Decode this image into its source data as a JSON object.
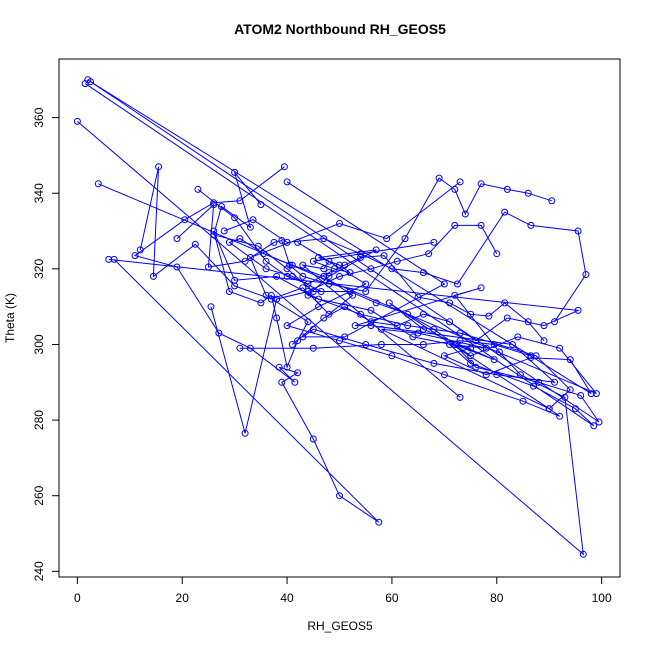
{
  "chart_data": {
    "type": "line",
    "title": "ATOM2 Northbound RH_GEOS5",
    "xlabel": "RH_GEOS5",
    "ylabel": "Theta (K)",
    "xlim": [
      -3.5,
      103.5
    ],
    "ylim": [
      238.5,
      375.5
    ],
    "x_ticks": [
      0,
      20,
      40,
      60,
      80,
      100
    ],
    "y_ticks": [
      240,
      260,
      280,
      300,
      320,
      340,
      360
    ],
    "grid": false,
    "legend": "none",
    "marker": "open-circle",
    "color": "#0000ff",
    "series": [
      {
        "x": [
          0,
          96.5,
          93,
          84.5,
          80.5,
          72,
          77,
          53,
          56,
          83,
          91,
          80,
          68,
          55,
          45,
          43,
          51,
          70,
          40
        ],
        "y": [
          359,
          244.5,
          286,
          292,
          298,
          313,
          315,
          305,
          305,
          300,
          290,
          292,
          295,
          300,
          304,
          302,
          302,
          316,
          343
        ]
      },
      {
        "x": [
          1.5,
          98.5,
          95,
          87,
          75,
          71,
          78,
          65,
          58,
          90,
          92,
          85,
          70,
          60,
          50,
          40,
          46,
          55,
          42,
          48,
          47,
          43,
          73
        ],
        "y": [
          369,
          278.5,
          283,
          289,
          295,
          300,
          299,
          303,
          304,
          283,
          281,
          285,
          292,
          297,
          301,
          305,
          310,
          316,
          327,
          322,
          320,
          321,
          286
        ]
      },
      {
        "x": [
          2,
          99.5,
          96,
          88,
          76,
          72,
          79.5,
          66,
          59.5,
          90,
          94,
          87.5,
          73,
          63,
          54,
          44,
          48,
          57,
          46,
          50,
          52,
          49,
          45,
          68
        ],
        "y": [
          370,
          279.5,
          286.5,
          290,
          294,
          300,
          296,
          304,
          311,
          283,
          288,
          297,
          303,
          305,
          308,
          313,
          318,
          325,
          323,
          321,
          319,
          320,
          322,
          327
        ]
      },
      {
        "x": [
          2.5,
          98,
          94,
          86.5,
          78,
          70,
          75,
          64,
          56,
          46,
          38,
          30,
          26,
          29,
          35,
          37,
          38,
          40,
          42,
          44,
          36,
          33,
          50,
          59,
          73
        ],
        "y": [
          369.5,
          287,
          296,
          296.5,
          292,
          297,
          299,
          302,
          309,
          312,
          318,
          317,
          330,
          314,
          311,
          313,
          307,
          294,
          301,
          306,
          313,
          323,
          332,
          328,
          343
        ]
      },
      {
        "x": [
          4,
          99,
          92,
          84,
          75,
          68,
          63,
          57,
          52,
          45,
          40,
          34.5,
          26,
          27.5,
          33,
          30,
          35
        ],
        "y": [
          342.5,
          287,
          299,
          302,
          297,
          304,
          308,
          311,
          314,
          314,
          320,
          326,
          329,
          336.5,
          331,
          345.5,
          337
        ]
      },
      {
        "x": [
          6,
          95.5,
          89,
          82,
          76,
          71,
          66,
          61,
          56,
          51,
          47,
          41
        ],
        "y": [
          322.5,
          309,
          305,
          307,
          301,
          306,
          308,
          305,
          306,
          310,
          307,
          300
        ]
      },
      {
        "x": [
          7,
          57.5,
          50,
          45,
          39,
          42,
          38.5,
          41.5,
          33,
          27,
          19,
          11,
          20.5,
          26,
          31,
          39.5
        ],
        "y": [
          322.5,
          253,
          260,
          275,
          290,
          292.5,
          294,
          290,
          299,
          303,
          320.5,
          323.5,
          333,
          337.5,
          338,
          347
        ]
      },
      {
        "x": [
          12,
          15.5,
          14.5,
          22.5,
          30,
          37,
          43,
          48,
          52.5,
          47,
          41,
          35.5,
          31,
          29,
          36,
          41,
          46.5
        ],
        "y": [
          325,
          347,
          318,
          326.5,
          315.5,
          312,
          315,
          308,
          313,
          318,
          321,
          324,
          328,
          327,
          320,
          318,
          314
        ]
      },
      {
        "x": [
          19,
          26,
          25,
          32,
          37.5,
          39,
          40.5,
          43,
          48,
          55,
          62.5,
          69,
          72,
          74,
          77,
          82,
          86,
          90.5
        ],
        "y": [
          328,
          337,
          320.5,
          322,
          327,
          327.5,
          321,
          318,
          316,
          314,
          328,
          344,
          341,
          334.5,
          342.5,
          341,
          340,
          338
        ]
      },
      {
        "x": [
          23,
          30,
          36,
          40,
          44,
          48,
          51,
          54,
          58.5,
          65,
          71,
          75,
          78.5,
          81.5,
          86,
          89
        ],
        "y": [
          341,
          333.5,
          322,
          318,
          316,
          319,
          321,
          323,
          323.5,
          312.5,
          311,
          308,
          307.5,
          311,
          306,
          301
        ]
      },
      {
        "x": [
          25.5,
          32,
          38,
          44,
          50,
          56,
          61,
          67,
          72,
          77,
          80
        ],
        "y": [
          310,
          276.5,
          312,
          314,
          318,
          320,
          322,
          324,
          331.5,
          331.5,
          324
        ]
      },
      {
        "x": [
          28,
          33.5,
          40,
          47,
          54,
          60,
          66,
          72.5,
          81.5,
          86.5,
          95.5,
          97,
          91
        ],
        "y": [
          330,
          333,
          327,
          328,
          324,
          320,
          319,
          316,
          335,
          331.5,
          330,
          318.5,
          306
        ]
      },
      {
        "x": [
          31,
          45,
          58,
          66,
          73,
          79.5,
          86.5
        ],
        "y": [
          299,
          299,
          300,
          300,
          301,
          300,
          297
        ]
      }
    ]
  }
}
